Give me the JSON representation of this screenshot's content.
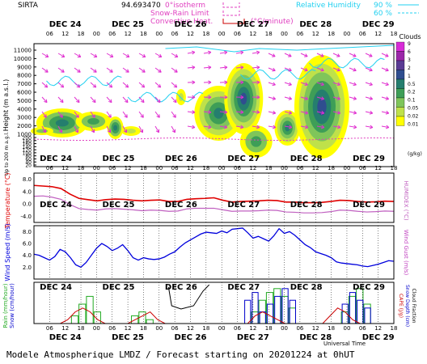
{
  "header": {
    "station": "SIRTA",
    "coord": "94.693470",
    "isotherm_label": "0°isotherm",
    "snow_rain_label": "Snow-Rain Limit",
    "convective_label": "Convective Heat.",
    "convective_unit": "(°C/minute)",
    "rh_label": "Relative Humidity",
    "rh_levels": [
      "90 %",
      "60 %"
    ]
  },
  "days": [
    "DEC 24",
    "DEC 25",
    "DEC 26",
    "DEC 27",
    "DEC 28",
    "DEC 29"
  ],
  "hour_ticks": [
    "06",
    "12",
    "18",
    "00"
  ],
  "colors": {
    "cloud_scale": [
      "#ffff00",
      "#bfe14a",
      "#7fc55a",
      "#3e9e57",
      "#257e6e",
      "#2f4e8f",
      "#5a3b94",
      "#9b27a9",
      "#d72bd7"
    ],
    "wind_arrows": "#e030d0",
    "rh": "#22d0f0",
    "temp": "#e00000",
    "humidex": "#c060c0",
    "wind": "#0000dd",
    "rain": "#22aa22",
    "snow": "#0000cc",
    "cape": "#cc0000"
  },
  "footer": "Modele Atmospherique LMDZ / Forecast starting on 20201224 at 0hUT",
  "chart_data": [
    {
      "type": "heatmap",
      "panel": "clouds",
      "ylabel": "Height (m a.s.l.)",
      "ylabel2": "Up to 200 m a.g.l.",
      "yticks": [
        "11000",
        "10000",
        "9000",
        "8000",
        "7000",
        "6000",
        "5000",
        "4000",
        "3000",
        "2000",
        "1000",
        "200",
        "180",
        "160",
        "140",
        "120",
        "100",
        "80",
        "60",
        "40",
        "20"
      ],
      "legend_title": "Clouds",
      "legend_unit": "(g/kg)",
      "legend_levels": [
        "9",
        "6",
        "3",
        "2",
        "1",
        "0.5",
        "0.2",
        "0.1",
        "0.05",
        "0.02",
        "0.01"
      ]
    },
    {
      "type": "line",
      "panel": "temperature",
      "ylabel": "Temperature (°C)",
      "ylabel2": "HUMIDEX (°C)",
      "yticks": [
        "8.0",
        "4.0",
        "0.0",
        "-4.0"
      ],
      "ylim": [
        -6,
        10
      ],
      "series": [
        {
          "name": "Temperature",
          "values": [
            6.0,
            5.8,
            5.6,
            5.0,
            3.2,
            1.8,
            1.4,
            1.0,
            1.4,
            1.6,
            1.5,
            1.2,
            1.0,
            1.2,
            1.3,
            0.8,
            0.8,
            1.5,
            1.7,
            1.8,
            2.0,
            1.2,
            0.6,
            0.8,
            0.9,
            1.0,
            1.2,
            1.1,
            0.6,
            0.6,
            0.4,
            0.4,
            0.5,
            0.8,
            1.2,
            1.1,
            0.8,
            0.6,
            0.7,
            0.9,
            0.8
          ]
        },
        {
          "name": "HUMIDEX",
          "values": [
            2.5,
            2.6,
            2.2,
            1.5,
            -0.2,
            -1.5,
            -1.8,
            -2.0,
            -1.6,
            -1.5,
            -1.7,
            -1.9,
            -2.2,
            -2.0,
            -2.1,
            -2.4,
            -2.3,
            -1.6,
            -1.4,
            -1.4,
            -1.4,
            -1.9,
            -2.4,
            -2.3,
            -2.3,
            -2.2,
            -2.0,
            -2.1,
            -2.6,
            -2.7,
            -2.9,
            -2.9,
            -2.8,
            -2.5,
            -2.0,
            -2.1,
            -2.4,
            -2.6,
            -2.5,
            -2.3,
            -2.4
          ]
        }
      ]
    },
    {
      "type": "line",
      "panel": "wind",
      "ylabel": "Wind Speed (m/s)",
      "ylabel2": "Wind Gust (m/s)",
      "yticks": [
        "8.0",
        "6.0",
        "4.0",
        "2.0"
      ],
      "ylim": [
        0,
        9
      ],
      "series": [
        {
          "name": "Wind Speed",
          "values": [
            4.2,
            4.0,
            3.6,
            3.2,
            3.8,
            5.0,
            4.6,
            3.6,
            2.4,
            2.0,
            2.8,
            4.0,
            5.2,
            6.0,
            5.5,
            4.8,
            5.2,
            5.8,
            4.8,
            3.6,
            3.2,
            3.6,
            3.4,
            3.3,
            3.4,
            3.7,
            4.2,
            4.6,
            5.4,
            6.1,
            6.6,
            7.1,
            7.6,
            7.9,
            7.8,
            7.7,
            8.1,
            7.8,
            8.4,
            8.5,
            8.6,
            7.8,
            6.9,
            7.2,
            6.8,
            6.4,
            7.3,
            8.5,
            7.7,
            8.0,
            7.4,
            6.6,
            5.8,
            5.3,
            4.6,
            4.3,
            4.0,
            3.6,
            2.9,
            2.7,
            2.6,
            2.5,
            2.4,
            2.2,
            2.1,
            2.3,
            2.5,
            2.8,
            3.1,
            3.0
          ]
        }
      ]
    },
    {
      "type": "bar",
      "panel": "precip",
      "ylabel": "Rain (mm/hour) / Snow (cm/hour)",
      "ylabel2": "CAPE (J/g) / Snow Depth (cm) / Cloud Fraction",
      "xlabel": "Universal Time",
      "series": [
        {
          "name": "Rain",
          "values": [
            0,
            0,
            0,
            0,
            0,
            0.2,
            0.5,
            0.7,
            0.3,
            0,
            0,
            0,
            0,
            0.2,
            0.3,
            0.1,
            0,
            0,
            0,
            0,
            0,
            0,
            0,
            0,
            0,
            0,
            0,
            0,
            0,
            0.3,
            0.6,
            0.8,
            0.9,
            0.7,
            0.4,
            0,
            0,
            0,
            0,
            0,
            0,
            0.3,
            0.7,
            0.9,
            0.5,
            0,
            0,
            0
          ]
        },
        {
          "name": "Snow",
          "values": [
            0,
            0,
            0,
            0,
            0,
            0,
            0,
            0,
            0,
            0,
            0,
            0,
            0,
            0,
            0,
            0,
            0,
            0,
            0,
            0,
            0,
            0,
            0,
            0,
            0,
            0,
            0,
            0,
            0.6,
            0.8,
            0.3,
            0.5,
            0.7,
            0.9,
            0.6,
            0,
            0,
            0,
            0,
            0,
            0,
            0.5,
            0.8,
            0.6,
            0.4,
            0,
            0,
            0
          ]
        },
        {
          "name": "CAPE",
          "values": [
            0,
            0,
            0,
            0,
            0.1,
            0.3,
            0.4,
            0.3,
            0.1,
            0,
            0,
            0,
            0,
            0.1,
            0.2,
            0.3,
            0.1,
            0,
            0,
            0,
            0,
            0,
            0,
            0,
            0,
            0,
            0,
            0,
            0,
            0.2,
            0.3,
            0.2,
            0.1,
            0,
            0,
            0,
            0,
            0,
            0,
            0.2,
            0.4,
            0.3,
            0.1,
            0,
            0,
            0,
            0,
            0
          ]
        }
      ]
    }
  ]
}
